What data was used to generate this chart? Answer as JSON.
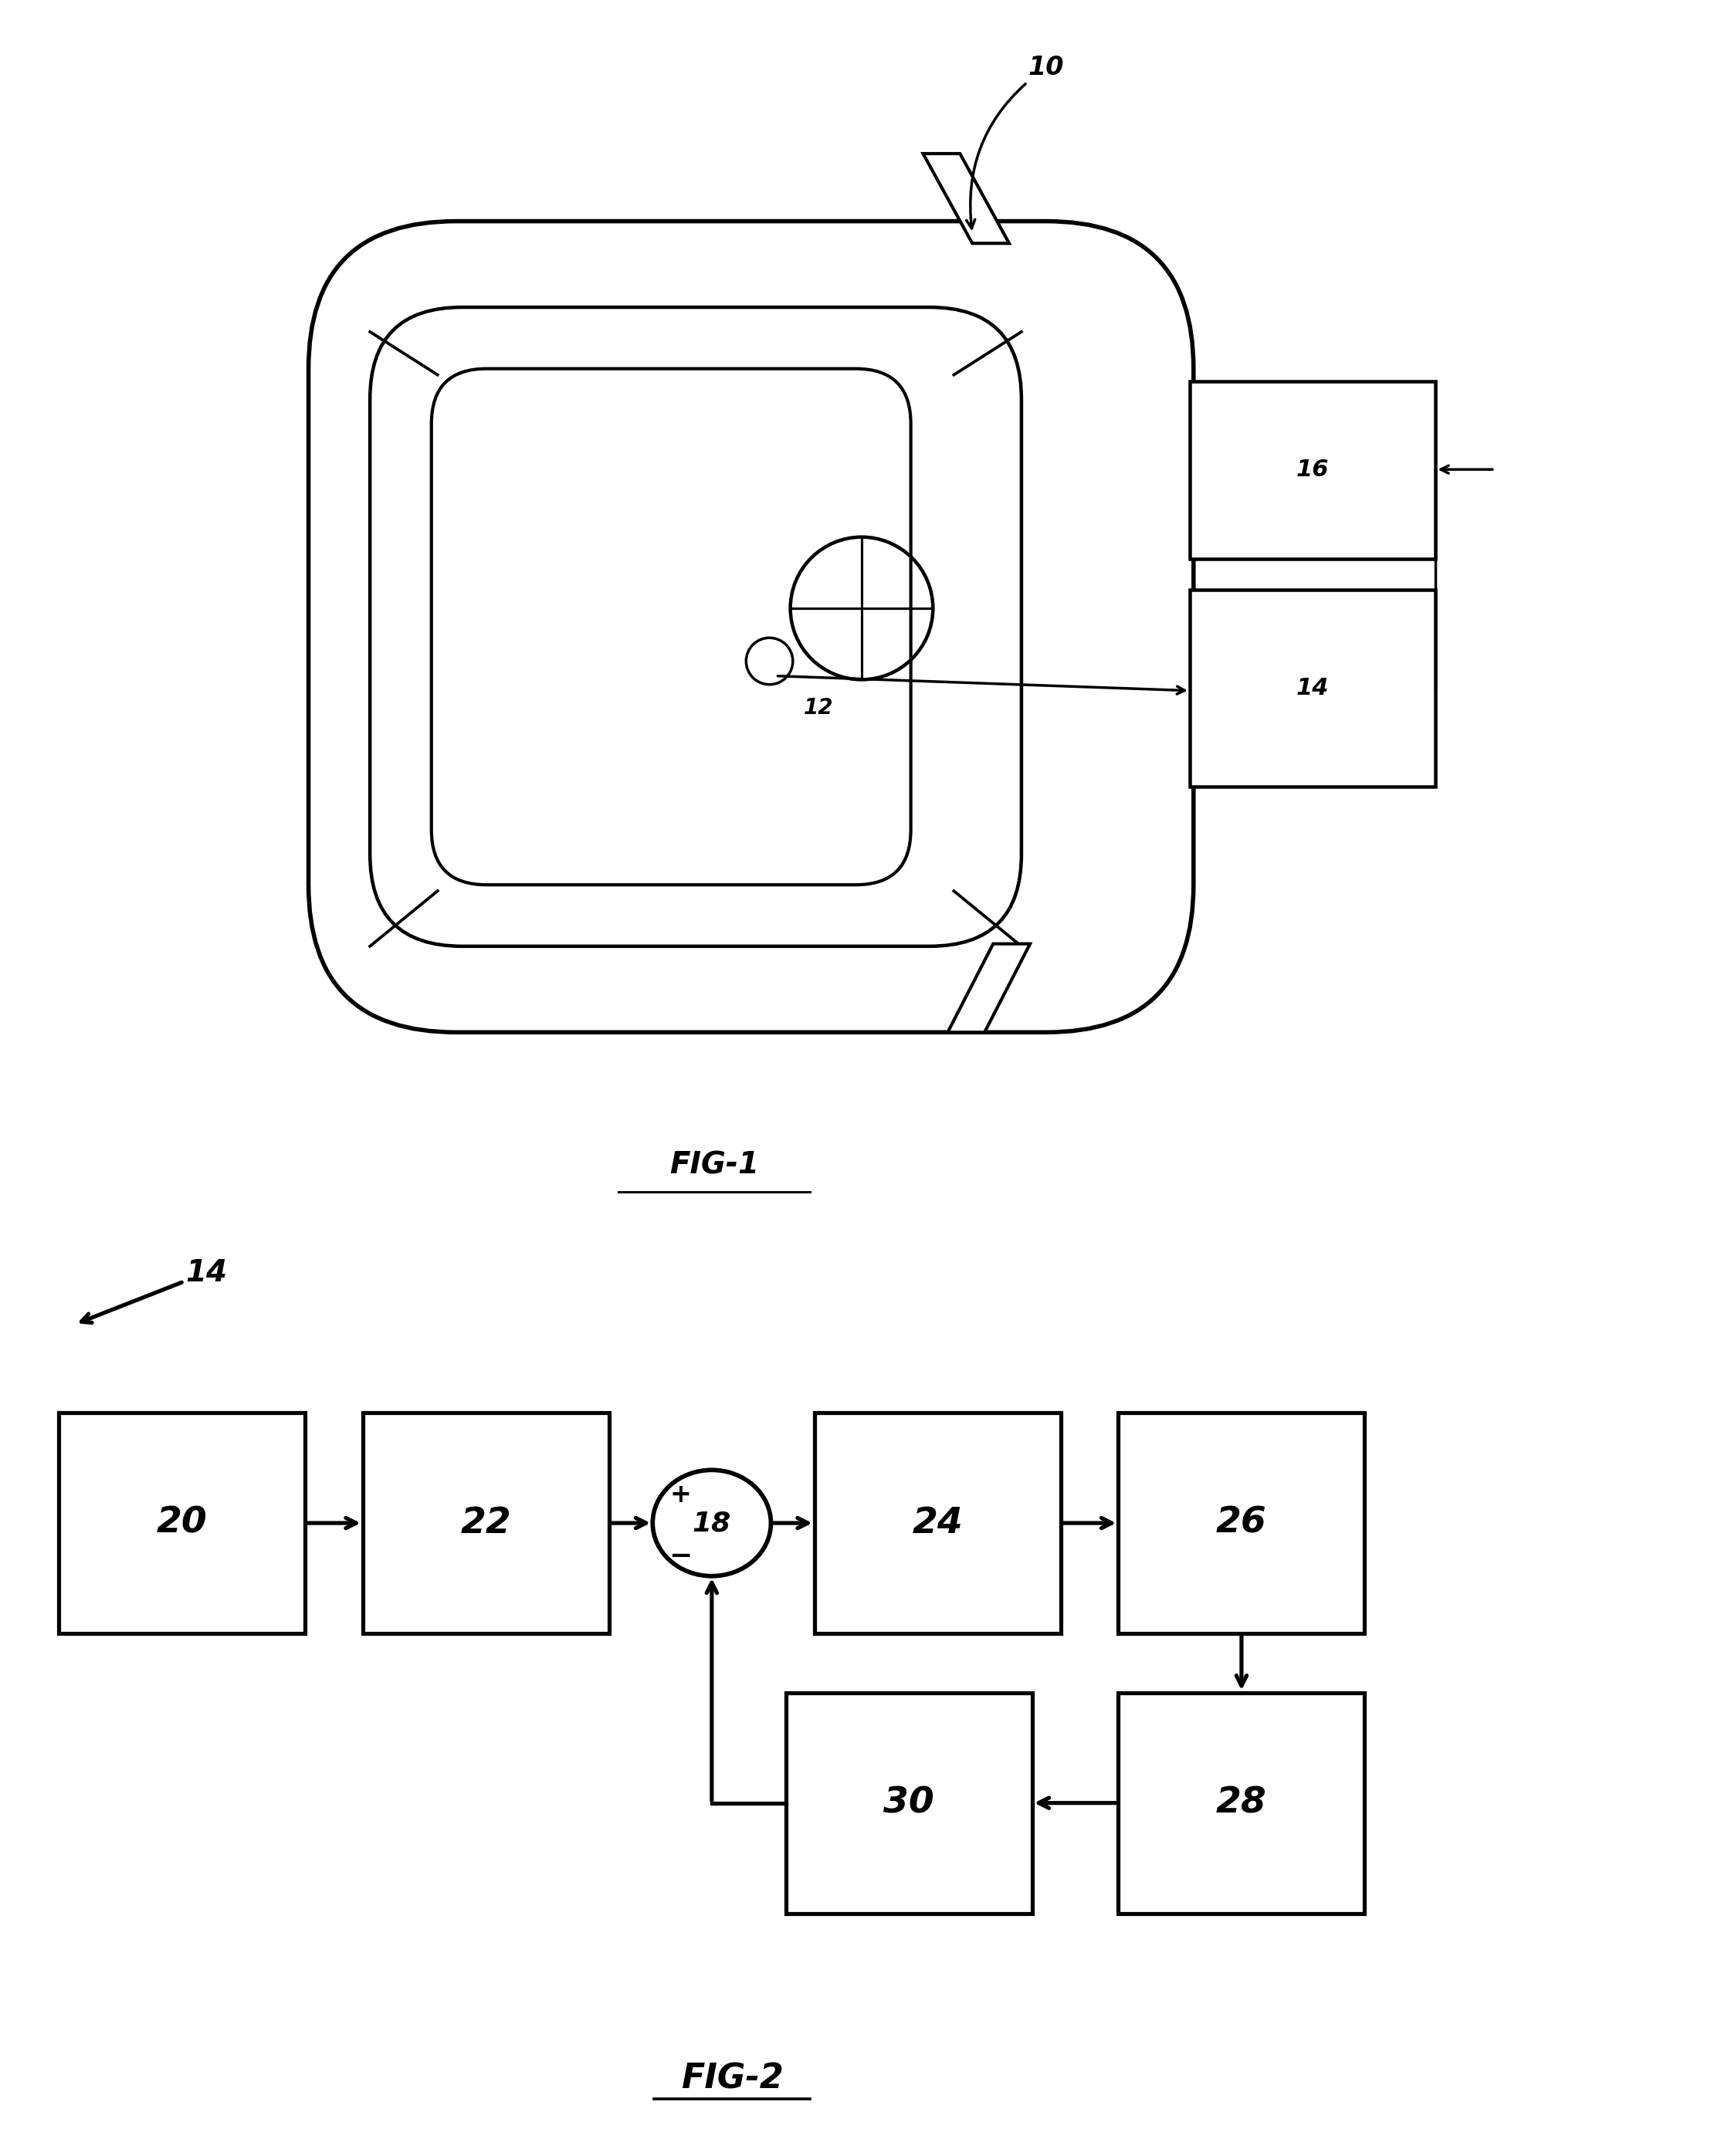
{
  "fig_width": 22.16,
  "fig_height": 27.93,
  "bg_color": "#ffffff",
  "line_color": "#000000",
  "line_width": 2.5,
  "fig1_label": "FIG-1",
  "fig2_label": "FIG-2",
  "car_label": "10",
  "camera_label": "12",
  "box14_label": "14",
  "box16_label": "16",
  "block_labels": [
    "20",
    "22",
    "18",
    "24",
    "26",
    "28",
    "30"
  ]
}
